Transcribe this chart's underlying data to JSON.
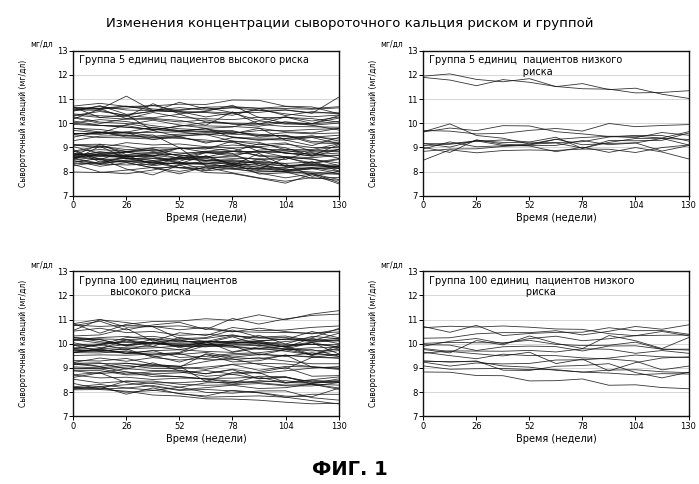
{
  "title": "Изменения концентрации сывороточного кальция риском и группой",
  "fig_label": "ФИГ. 1",
  "subplot_titles": [
    "Группа 5 единиц пациентов высокого риска",
    "Группа 5 единиц  пациентов низкого\n                              риска",
    "Группа 100 единиц пациентов\n          высокого риска",
    "Группа 100 единиц  пациентов низкого\n                               риска"
  ],
  "xlabel": "Время (недели)",
  "ylabel": "Сывороточный кальций (мг/дл)",
  "ylabel_short": "мг/дл",
  "x_ticks": [
    0,
    26,
    52,
    78,
    104,
    130
  ],
  "y_ticks": [
    7,
    8,
    9,
    10,
    11,
    12,
    13
  ],
  "ylim": [
    7,
    13
  ],
  "xlim": [
    0,
    130
  ],
  "background_color": "#ffffff",
  "line_color": "#111111",
  "n_patients_high_5": 60,
  "n_patients_low_5": 12,
  "n_patients_high_100": 50,
  "n_patients_low_100": 15
}
